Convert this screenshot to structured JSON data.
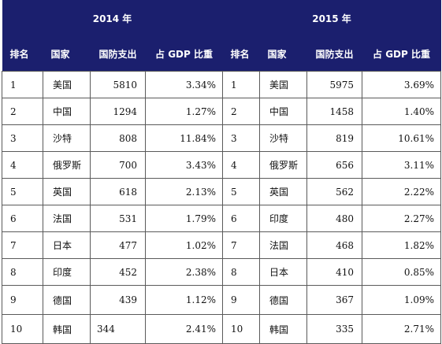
{
  "years": {
    "y1": "2014 年",
    "y2": "2015 年"
  },
  "columns": {
    "rank": "排名",
    "country": "国家",
    "spending": "国防支出",
    "gdp_share": "占 GDP 比重"
  },
  "rows": [
    {
      "r1": "1",
      "c1": "美国",
      "s1": "5810",
      "g1": "3.34%",
      "r2": "1",
      "c2": "美国",
      "s2": "5975",
      "g2": "3.69%"
    },
    {
      "r1": "2",
      "c1": "中国",
      "s1": "1294",
      "g1": "1.27%",
      "r2": "2",
      "c2": "中国",
      "s2": "1458",
      "g2": "1.40%"
    },
    {
      "r1": "3",
      "c1": "沙特",
      "s1": "808",
      "g1": "11.84%",
      "r2": "3",
      "c2": "沙特",
      "s2": "819",
      "g2": "10.61%"
    },
    {
      "r1": "4",
      "c1": "俄罗斯",
      "s1": "700",
      "g1": "3.43%",
      "r2": "4",
      "c2": "俄罗斯",
      "s2": "656",
      "g2": "3.11%"
    },
    {
      "r1": "5",
      "c1": "英国",
      "s1": "618",
      "g1": "2.13%",
      "r2": "5",
      "c2": "英国",
      "s2": "562",
      "g2": "2.22%"
    },
    {
      "r1": "6",
      "c1": "法国",
      "s1": "531",
      "g1": "1.79%",
      "r2": "6",
      "c2": "印度",
      "s2": "480",
      "g2": "2.27%"
    },
    {
      "r1": "7",
      "c1": "日本",
      "s1": "477",
      "g1": "1.02%",
      "r2": "7",
      "c2": "法国",
      "s2": "468",
      "g2": "1.82%"
    },
    {
      "r1": "8",
      "c1": "印度",
      "s1": "452",
      "g1": "2.38%",
      "r2": "8",
      "c2": "日本",
      "s2": "410",
      "g2": "0.85%"
    },
    {
      "r1": "9",
      "c1": "德国",
      "s1": "439",
      "g1": "1.12%",
      "r2": "9",
      "c2": "德国",
      "s2": "367",
      "g2": "1.09%"
    },
    {
      "r1": "10",
      "c1": "韩国",
      "s1": "344",
      "g1": "2.41%",
      "r2": "10",
      "c2": "韩国",
      "s2": "335",
      "g2": "2.71%"
    }
  ],
  "colors": {
    "header_bg": "#1b1f6e",
    "header_text": "#ffffff",
    "border": "#5a5a5a"
  }
}
